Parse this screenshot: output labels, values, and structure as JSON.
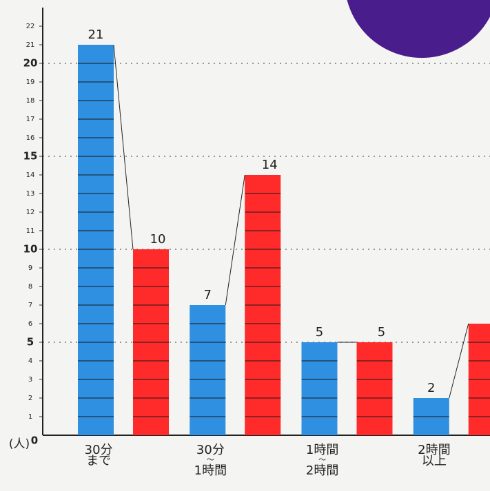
{
  "chart_data": {
    "type": "bar",
    "y_unit": "(人)",
    "categories": [
      [
        "30分",
        "まで"
      ],
      [
        "30分",
        "〜",
        "1時間"
      ],
      [
        "1時間",
        "〜",
        "2時間"
      ],
      [
        "2時間",
        "以上"
      ]
    ],
    "series": [
      {
        "color": "#2f8fe0",
        "values": [
          21,
          7,
          5,
          2
        ]
      },
      {
        "color": "#ff2a2a",
        "values": [
          10,
          14,
          5,
          6
        ]
      }
    ],
    "ylim": [
      0,
      23
    ],
    "yticks": [
      0,
      1,
      2,
      3,
      4,
      5,
      6,
      7,
      8,
      9,
      10,
      11,
      12,
      13,
      14,
      15,
      16,
      17,
      18,
      19,
      20,
      21,
      22
    ],
    "grid": true,
    "connectors": true
  }
}
